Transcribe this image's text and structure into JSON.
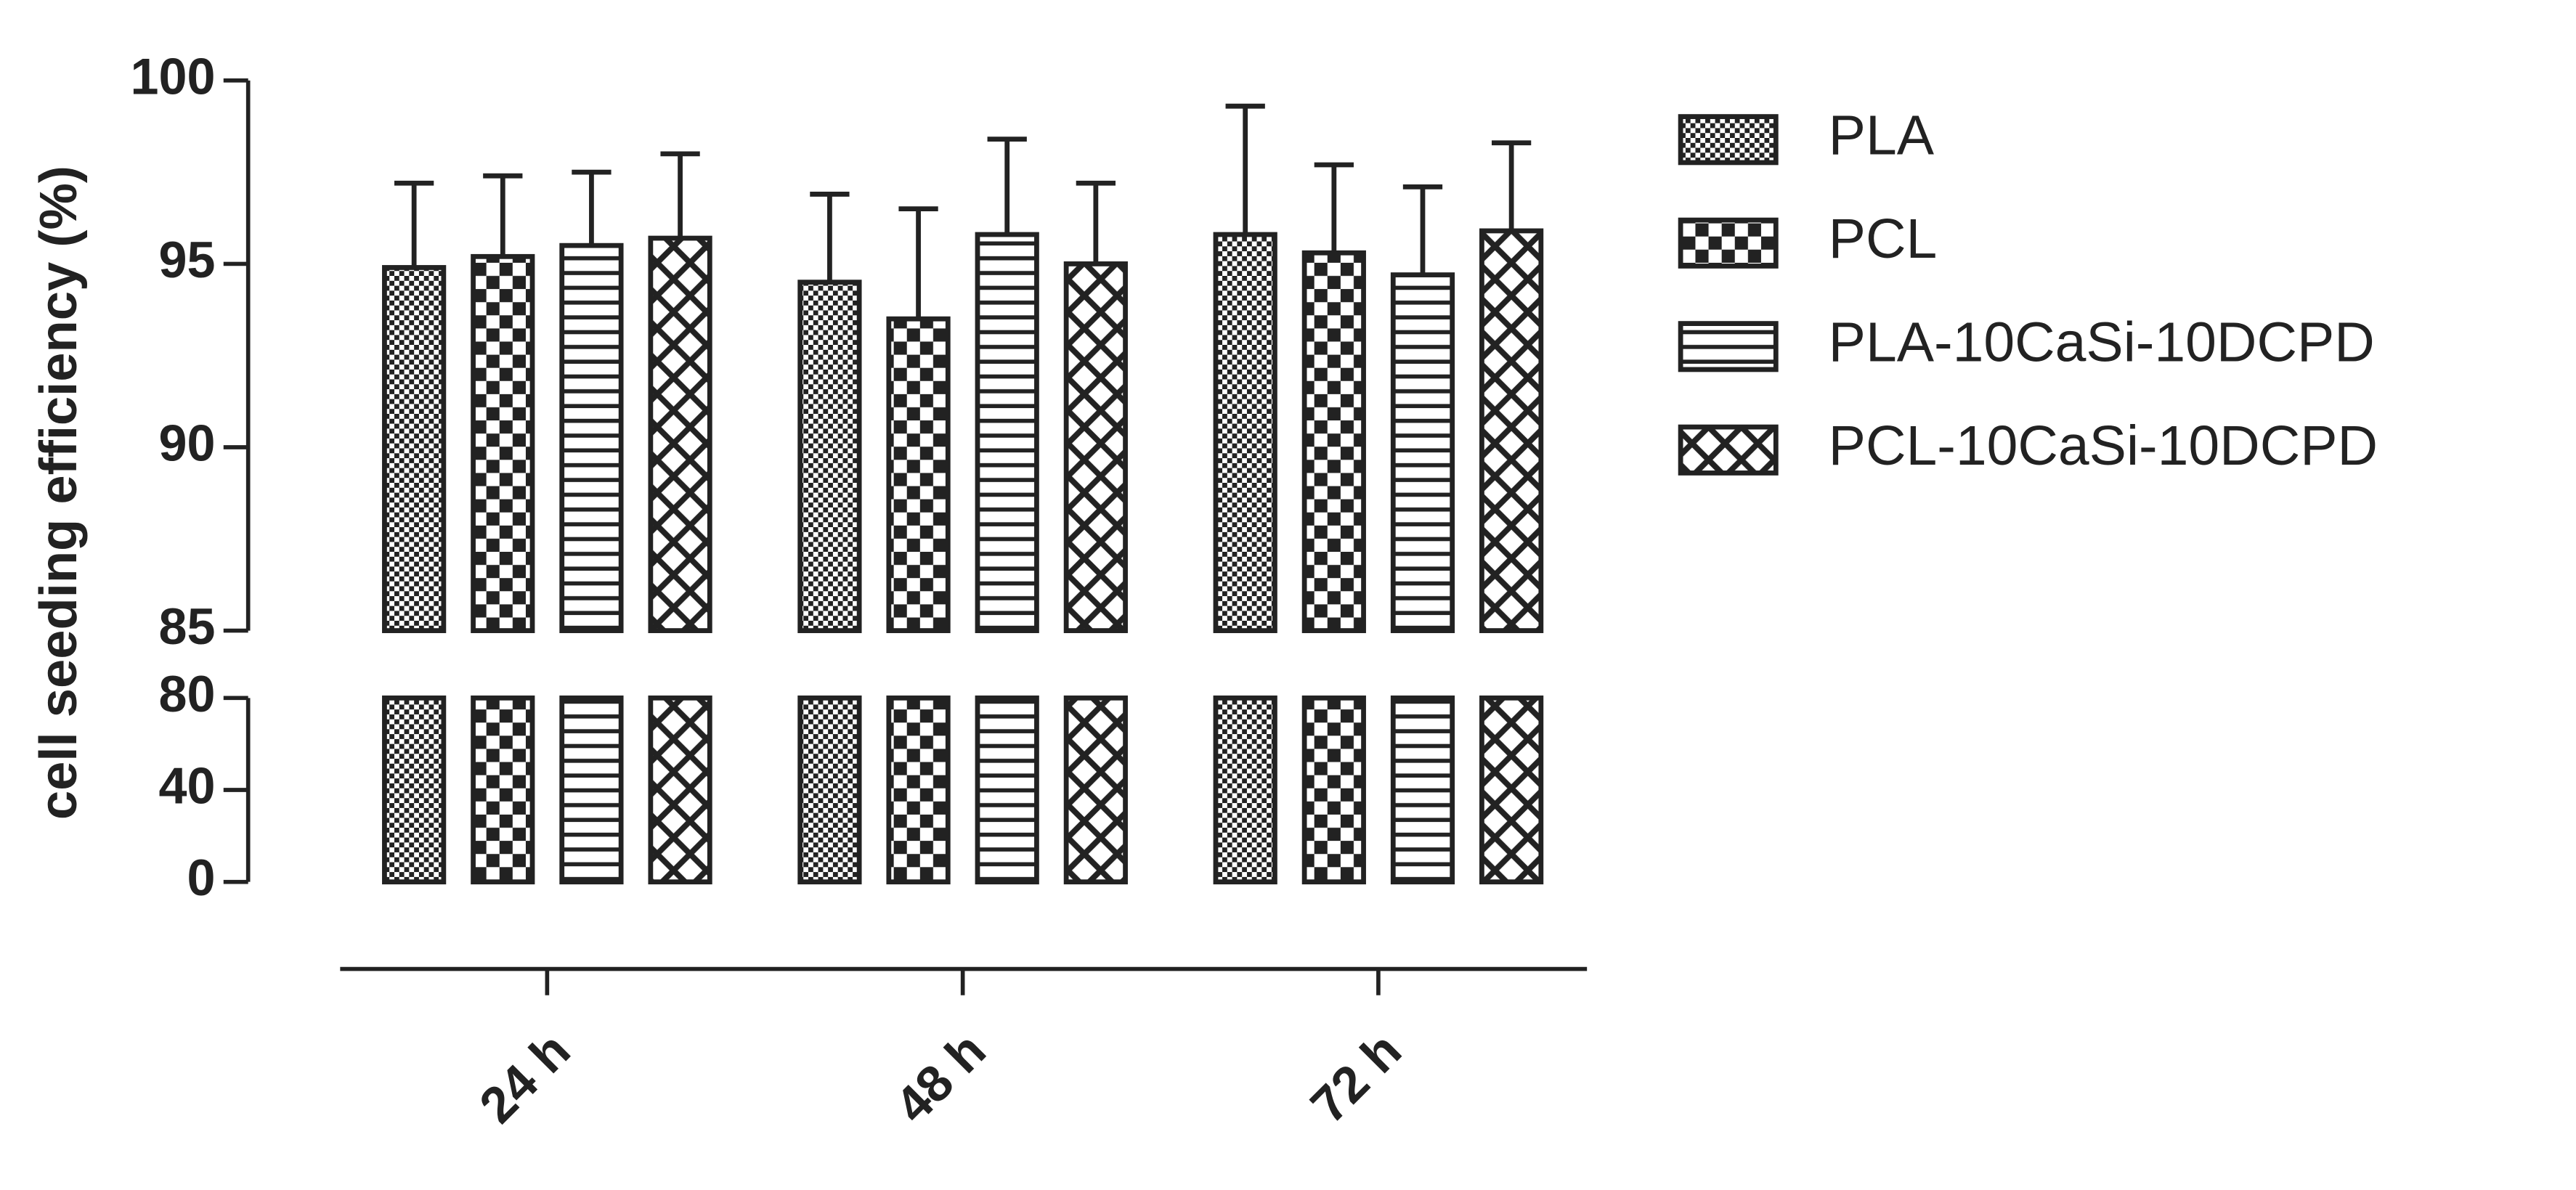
{
  "chart_data": {
    "type": "bar",
    "y_label": "cell seeding efficiency (%)",
    "categories": [
      "24 h",
      "48 h",
      "72 h"
    ],
    "series": [
      {
        "name": "PLA",
        "values": [
          94.9,
          94.5,
          95.8
        ],
        "errors": [
          2.3,
          2.4,
          3.5
        ]
      },
      {
        "name": "PCL",
        "values": [
          95.2,
          93.5,
          95.3
        ],
        "errors": [
          2.2,
          3.0,
          2.4
        ]
      },
      {
        "name": "PLA-10CaSi-10DCPD",
        "values": [
          95.5,
          95.8,
          94.7
        ],
        "errors": [
          2.0,
          2.6,
          2.4
        ]
      },
      {
        "name": "PCL-10CaSi-10DCPD",
        "values": [
          95.7,
          95.0,
          95.9
        ],
        "errors": [
          2.3,
          2.2,
          2.4
        ]
      }
    ],
    "color": "#222222",
    "y_segments": [
      {
        "ylim": [
          0,
          80
        ],
        "yticks": [
          0,
          40,
          80
        ]
      },
      {
        "ylim": [
          85,
          100
        ],
        "yticks": [
          85,
          90,
          95,
          100
        ]
      }
    ],
    "legend": "right"
  }
}
